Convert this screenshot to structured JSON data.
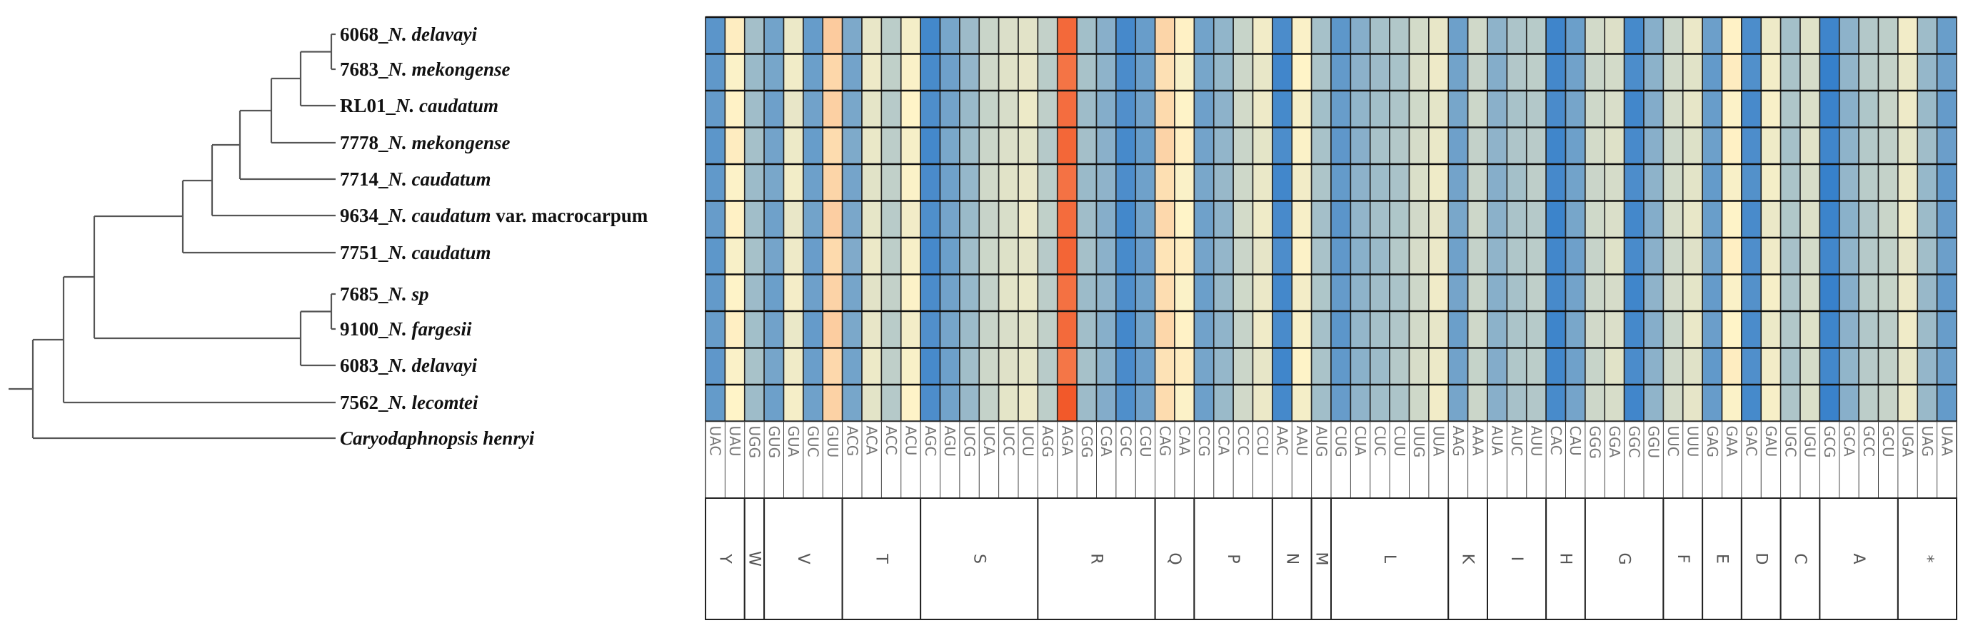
{
  "tree": {
    "taxa": [
      {
        "code": "6068_",
        "name": "N. delavayi",
        "suffix": ""
      },
      {
        "code": "7683_",
        "name": "N. mekongense",
        "suffix": ""
      },
      {
        "code": "RL01_",
        "name": "N. caudatum",
        "suffix": ""
      },
      {
        "code": "7778_",
        "name": "N. mekongense",
        "suffix": ""
      },
      {
        "code": "7714_",
        "name": "N. caudatum",
        "suffix": ""
      },
      {
        "code": "9634_",
        "name": "N. caudatum",
        "suffix": " var. macrocarpum"
      },
      {
        "code": "7751_",
        "name": "N. caudatum",
        "suffix": ""
      },
      {
        "code": "7685_",
        "name": "N. sp",
        "suffix": ""
      },
      {
        "code": "9100_",
        "name": "N. fargesii",
        "suffix": ""
      },
      {
        "code": "6083_",
        "name": "N. delavayi",
        "suffix": ""
      },
      {
        "code": "7562_",
        "name": "N. lecomtei",
        "suffix": ""
      },
      {
        "code": "",
        "name": "Caryodaphnopsis henryi",
        "suffix": ""
      }
    ]
  },
  "heatmap": {
    "color_scale": {
      "low": "#2f7ccb",
      "mid": "#fff4c8",
      "high": "#f2592a"
    },
    "codons": [
      "UAC",
      "UAU",
      "UGG",
      "GUG",
      "GUA",
      "GUC",
      "GUU",
      "ACG",
      "ACA",
      "ACC",
      "ACU",
      "AGC",
      "AGU",
      "UCG",
      "UCA",
      "UCC",
      "UCU",
      "AGG",
      "AGA",
      "CGG",
      "CGA",
      "CGC",
      "CGU",
      "CAG",
      "CAA",
      "CCG",
      "CCA",
      "CCC",
      "CCU",
      "AAC",
      "AAU",
      "AUG",
      "CUG",
      "CUA",
      "CUC",
      "CUU",
      "UUG",
      "UUA",
      "AAG",
      "AAA",
      "AUA",
      "AUC",
      "AUU",
      "CAC",
      "CAU",
      "GGG",
      "GGA",
      "GGC",
      "GGU",
      "UUC",
      "UUU",
      "GAG",
      "GAA",
      "GAC",
      "GAU",
      "UGC",
      "UGU",
      "GCG",
      "GCA",
      "GCC",
      "GCU",
      "UGA",
      "UAG",
      "UAA"
    ],
    "column_values": [
      0.15,
      0.62,
      0.34,
      0.2,
      0.57,
      0.18,
      0.7,
      0.22,
      0.55,
      0.42,
      0.6,
      0.08,
      0.2,
      0.32,
      0.46,
      0.52,
      0.55,
      0.42,
      0.95,
      0.34,
      0.27,
      0.08,
      0.19,
      0.68,
      0.62,
      0.2,
      0.3,
      0.47,
      0.56,
      0.07,
      0.6,
      0.36,
      0.15,
      0.28,
      0.34,
      0.38,
      0.49,
      0.56,
      0.2,
      0.46,
      0.27,
      0.37,
      0.41,
      0.06,
      0.2,
      0.47,
      0.51,
      0.07,
      0.27,
      0.48,
      0.54,
      0.17,
      0.62,
      0.09,
      0.58,
      0.37,
      0.51,
      0.04,
      0.28,
      0.4,
      0.44,
      0.56,
      0.32,
      0.17
    ],
    "amino_acids": [
      {
        "label": "Y",
        "span": 2
      },
      {
        "label": "W",
        "span": 1
      },
      {
        "label": "V",
        "span": 4
      },
      {
        "label": "T",
        "span": 4
      },
      {
        "label": "S",
        "span": 6
      },
      {
        "label": "R",
        "span": 6
      },
      {
        "label": "Q",
        "span": 2
      },
      {
        "label": "P",
        "span": 4
      },
      {
        "label": "N",
        "span": 2
      },
      {
        "label": "M",
        "span": 1
      },
      {
        "label": "L",
        "span": 6
      },
      {
        "label": "K",
        "span": 2
      },
      {
        "label": "I",
        "span": 3
      },
      {
        "label": "H",
        "span": 2
      },
      {
        "label": "G",
        "span": 4
      },
      {
        "label": "F",
        "span": 2
      },
      {
        "label": "E",
        "span": 2
      },
      {
        "label": "D",
        "span": 2
      },
      {
        "label": "C",
        "span": 2
      },
      {
        "label": "A",
        "span": 4
      },
      {
        "label": "*",
        "span": 3
      }
    ]
  }
}
